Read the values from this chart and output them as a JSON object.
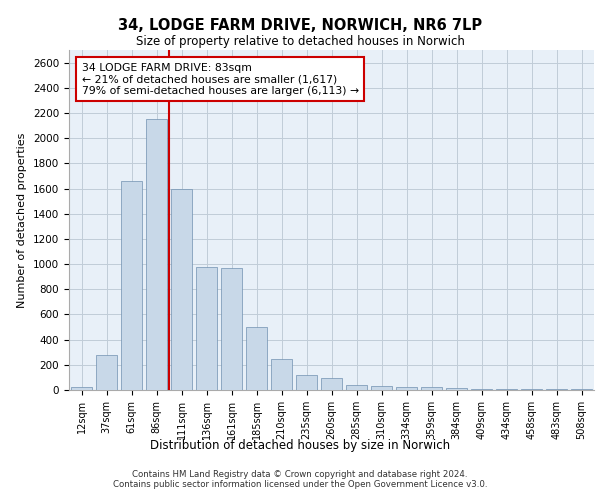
{
  "title_line1": "34, LODGE FARM DRIVE, NORWICH, NR6 7LP",
  "title_line2": "Size of property relative to detached houses in Norwich",
  "xlabel": "Distribution of detached houses by size in Norwich",
  "ylabel": "Number of detached properties",
  "categories": [
    "12sqm",
    "37sqm",
    "61sqm",
    "86sqm",
    "111sqm",
    "136sqm",
    "161sqm",
    "185sqm",
    "210sqm",
    "235sqm",
    "260sqm",
    "285sqm",
    "310sqm",
    "334sqm",
    "359sqm",
    "384sqm",
    "409sqm",
    "434sqm",
    "458sqm",
    "483sqm",
    "508sqm"
  ],
  "values": [
    25,
    280,
    1660,
    2150,
    1600,
    980,
    970,
    500,
    250,
    120,
    95,
    40,
    35,
    20,
    20,
    15,
    10,
    5,
    10,
    5,
    5
  ],
  "bar_color": "#c8d8e8",
  "bar_edge_color": "#7090b0",
  "annotation_text": "34 LODGE FARM DRIVE: 83sqm\n← 21% of detached houses are smaller (1,617)\n79% of semi-detached houses are larger (6,113) →",
  "annotation_box_color": "#ffffff",
  "annotation_box_edge": "#cc0000",
  "vline_color": "#cc0000",
  "vline_x_index": 3.5,
  "ylim": [
    0,
    2700
  ],
  "yticks": [
    0,
    200,
    400,
    600,
    800,
    1000,
    1200,
    1400,
    1600,
    1800,
    2000,
    2200,
    2400,
    2600
  ],
  "grid_color": "#c0ccd8",
  "background_color": "#e8f0f8",
  "footer_line1": "Contains HM Land Registry data © Crown copyright and database right 2024.",
  "footer_line2": "Contains public sector information licensed under the Open Government Licence v3.0."
}
